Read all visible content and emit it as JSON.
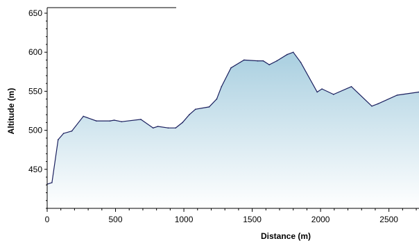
{
  "chart_data": {
    "type": "area",
    "title": "",
    "xlabel": "Distance (m)",
    "ylabel": "Altitude (m)",
    "xlim": [
      0,
      2720
    ],
    "ylim": [
      400,
      650
    ],
    "xticks": [
      0,
      500,
      1000,
      1500,
      2000,
      2500
    ],
    "yticks": [
      450,
      500,
      550,
      600,
      650
    ],
    "grid": false,
    "legend": "none",
    "colors": {
      "line": "#1a1f5e",
      "fill_top": "#a9cfe0",
      "fill_bottom": "#ffffff"
    },
    "series": [
      {
        "x": [
          0,
          35,
          80,
          120,
          180,
          265,
          360,
          460,
          490,
          545,
          685,
          775,
          810,
          885,
          940,
          990,
          1040,
          1085,
          1185,
          1240,
          1275,
          1345,
          1440,
          1540,
          1580,
          1625,
          1680,
          1755,
          1800,
          1855,
          1975,
          2010,
          2095,
          2225,
          2375,
          2420,
          2560,
          2720
        ],
        "y": [
          431,
          433,
          488,
          496,
          499,
          518,
          512,
          512,
          513,
          511,
          514,
          503,
          505,
          503,
          503,
          510,
          520,
          527,
          530,
          540,
          556,
          580,
          590,
          589,
          589,
          584,
          589,
          597,
          600,
          587,
          549,
          553,
          546,
          556,
          531,
          534,
          545,
          549
        ]
      }
    ]
  }
}
